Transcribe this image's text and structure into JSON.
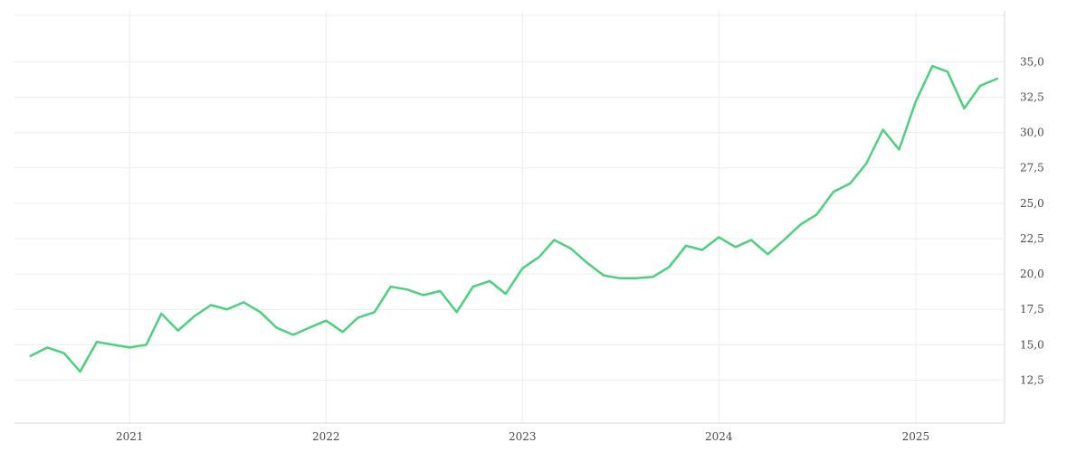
{
  "chart_data": {
    "type": "line",
    "title": "",
    "xlabel": "",
    "ylabel": "",
    "grid": true,
    "legend": "none",
    "y_axis_position": "right",
    "decimal_separator": ",",
    "line_color": "#4cd07d",
    "xlim": [
      "2020-06-01",
      "2025-06-15"
    ],
    "ylim": [
      10.1,
      38.6
    ],
    "x_ticks": [
      {
        "value": "2021-01-01",
        "label": "2021"
      },
      {
        "value": "2022-01-01",
        "label": "2022"
      },
      {
        "value": "2023-01-01",
        "label": "2023"
      },
      {
        "value": "2024-01-01",
        "label": "2024"
      },
      {
        "value": "2025-01-01",
        "label": "2025"
      }
    ],
    "y_ticks": [
      {
        "value": 12.5,
        "label": "12,5"
      },
      {
        "value": 15.0,
        "label": "15,0"
      },
      {
        "value": 17.5,
        "label": "17,5"
      },
      {
        "value": 20.0,
        "label": "20,0"
      },
      {
        "value": 22.5,
        "label": "22,5"
      },
      {
        "value": 25.0,
        "label": "25,0"
      },
      {
        "value": 27.5,
        "label": "27,5"
      },
      {
        "value": 30.0,
        "label": "30,0"
      },
      {
        "value": 32.5,
        "label": "32,5"
      },
      {
        "value": 35.0,
        "label": "35,0"
      }
    ],
    "series": [
      {
        "x": [
          "2020-07-01",
          "2020-08-01",
          "2020-09-01",
          "2020-10-01",
          "2020-11-01",
          "2020-12-01",
          "2021-01-01",
          "2021-02-01",
          "2021-03-01",
          "2021-04-01",
          "2021-05-01",
          "2021-06-01",
          "2021-07-01",
          "2021-08-01",
          "2021-09-01",
          "2021-10-01",
          "2021-11-01",
          "2021-12-01",
          "2022-01-01",
          "2022-02-01",
          "2022-03-01",
          "2022-04-01",
          "2022-05-01",
          "2022-06-01",
          "2022-07-01",
          "2022-08-01",
          "2022-09-01",
          "2022-10-01",
          "2022-11-01",
          "2022-12-01",
          "2023-01-01",
          "2023-02-01",
          "2023-03-01",
          "2023-04-01",
          "2023-05-01",
          "2023-06-01",
          "2023-07-01",
          "2023-08-01",
          "2023-09-01",
          "2023-10-01",
          "2023-11-01",
          "2023-12-01",
          "2024-01-01",
          "2024-02-01",
          "2024-03-01",
          "2024-04-01",
          "2024-05-01",
          "2024-06-01",
          "2024-07-01",
          "2024-08-01",
          "2024-09-01",
          "2024-10-01",
          "2024-11-01",
          "2024-12-01",
          "2025-01-01",
          "2025-02-01",
          "2025-03-01",
          "2025-04-01",
          "2025-05-01",
          "2025-06-01"
        ],
        "values": [
          14.2,
          14.8,
          14.4,
          13.1,
          15.2,
          15.0,
          14.8,
          15.0,
          17.2,
          16.0,
          17.0,
          17.8,
          17.5,
          18.0,
          17.3,
          16.2,
          15.7,
          16.2,
          16.7,
          15.9,
          16.9,
          17.3,
          19.1,
          18.9,
          18.5,
          18.8,
          17.3,
          19.1,
          19.5,
          18.6,
          20.4,
          21.2,
          22.4,
          21.8,
          20.8,
          19.9,
          19.7,
          19.7,
          19.8,
          20.5,
          22.0,
          21.7,
          22.6,
          21.9,
          22.4,
          21.4,
          22.4,
          23.5,
          24.2,
          25.8,
          26.4,
          27.8,
          30.2,
          28.8,
          32.2,
          34.7,
          34.3,
          31.7,
          33.3,
          33.8
        ]
      }
    ]
  }
}
